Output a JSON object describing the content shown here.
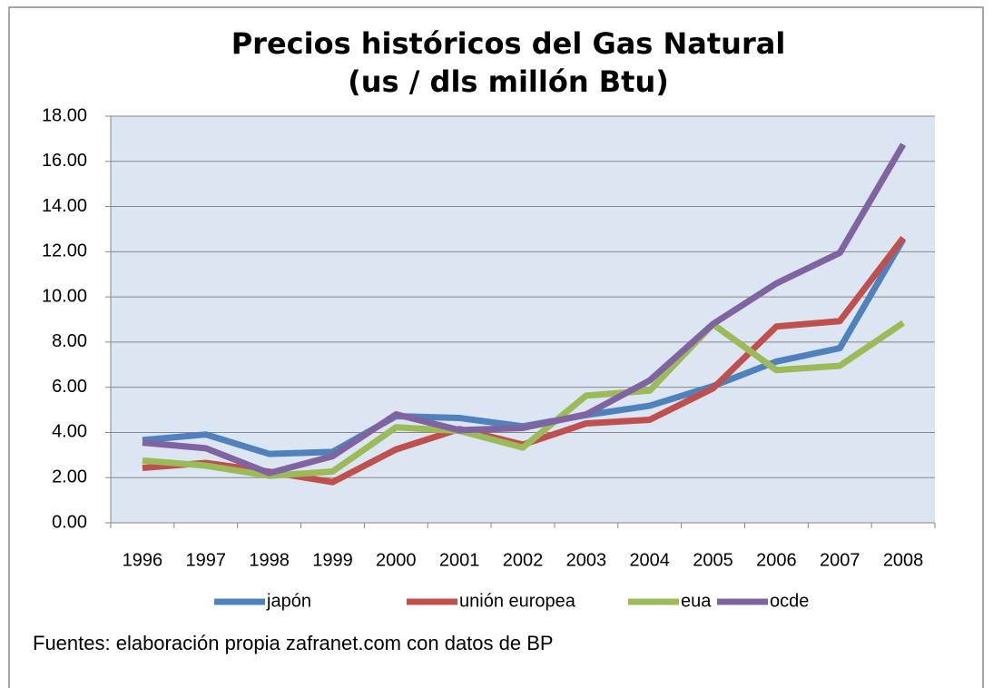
{
  "chart_data": {
    "type": "line",
    "title": "Precios históricos del Gas Natural",
    "subtitle": "(us / dls millón Btu)",
    "categories": [
      "1996",
      "1997",
      "1998",
      "1999",
      "2000",
      "2001",
      "2002",
      "2003",
      "2004",
      "2005",
      "2006",
      "2007",
      "2008"
    ],
    "series": [
      {
        "name": "japón",
        "color": "#4f81bd",
        "values": [
          3.66,
          3.91,
          3.05,
          3.14,
          4.72,
          4.64,
          4.27,
          4.77,
          5.18,
          6.05,
          7.14,
          7.73,
          12.55
        ]
      },
      {
        "name": "unión europea",
        "color": "#c0504d",
        "values": [
          2.43,
          2.65,
          2.26,
          1.8,
          3.25,
          4.15,
          3.46,
          4.4,
          4.56,
          5.95,
          8.69,
          8.93,
          12.61
        ]
      },
      {
        "name": "eua",
        "color": "#9bbb59",
        "values": [
          2.76,
          2.53,
          2.08,
          2.27,
          4.23,
          4.07,
          3.33,
          5.63,
          5.85,
          8.79,
          6.76,
          6.95,
          8.85
        ]
      },
      {
        "name": "ocde",
        "color": "#8064a2",
        "values": [
          3.55,
          3.3,
          2.2,
          2.95,
          4.8,
          4.1,
          4.2,
          4.8,
          6.3,
          8.8,
          10.6,
          11.95,
          16.75
        ]
      }
    ],
    "ylim": [
      0,
      18
    ],
    "yticks": [
      {
        "value": 0,
        "label": "0.00"
      },
      {
        "value": 2,
        "label": "2.00"
      },
      {
        "value": 4,
        "label": "4.00"
      },
      {
        "value": 6,
        "label": "6.00"
      },
      {
        "value": 8,
        "label": "8.00"
      },
      {
        "value": 10,
        "label": "10.00"
      },
      {
        "value": 12,
        "label": "12.00"
      },
      {
        "value": 14,
        "label": "14.00"
      },
      {
        "value": 16,
        "label": "16.00"
      },
      {
        "value": 18,
        "label": "18.00"
      }
    ],
    "grid": true,
    "legend": "bottom",
    "footnote": "Fuentes: elaboración propia zafranet.com con datos de BP"
  }
}
